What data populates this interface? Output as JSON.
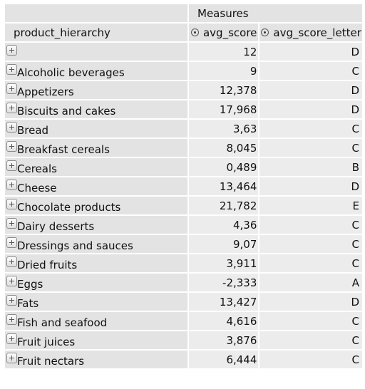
{
  "header": {
    "measures_label": "Measures",
    "row_dimension": "product_hierarchy",
    "col1": "avg_score",
    "col2": "avg_score_letter"
  },
  "rows": [
    {
      "label": "",
      "avg_score": "12",
      "letter": "D"
    },
    {
      "label": "Alcoholic beverages",
      "avg_score": "9",
      "letter": "C"
    },
    {
      "label": "Appetizers",
      "avg_score": "12,378",
      "letter": "D"
    },
    {
      "label": "Biscuits and cakes",
      "avg_score": "17,968",
      "letter": "D"
    },
    {
      "label": "Bread",
      "avg_score": "3,63",
      "letter": "C"
    },
    {
      "label": "Breakfast cereals",
      "avg_score": "8,045",
      "letter": "C"
    },
    {
      "label": "Cereals",
      "avg_score": "0,489",
      "letter": "B"
    },
    {
      "label": "Cheese",
      "avg_score": "13,464",
      "letter": "D"
    },
    {
      "label": "Chocolate products",
      "avg_score": "21,782",
      "letter": "E"
    },
    {
      "label": "Dairy desserts",
      "avg_score": "4,36",
      "letter": "C"
    },
    {
      "label": "Dressings and sauces",
      "avg_score": "9,07",
      "letter": "C"
    },
    {
      "label": "Dried fruits",
      "avg_score": "3,911",
      "letter": "C"
    },
    {
      "label": "Eggs",
      "avg_score": "-2,333",
      "letter": "A"
    },
    {
      "label": "Fats",
      "avg_score": "13,427",
      "letter": "D"
    },
    {
      "label": "Fish and seafood",
      "avg_score": "4,616",
      "letter": "C"
    },
    {
      "label": "Fruit juices",
      "avg_score": "3,876",
      "letter": "C"
    },
    {
      "label": "Fruit nectars",
      "avg_score": "6,444",
      "letter": "C"
    }
  ]
}
